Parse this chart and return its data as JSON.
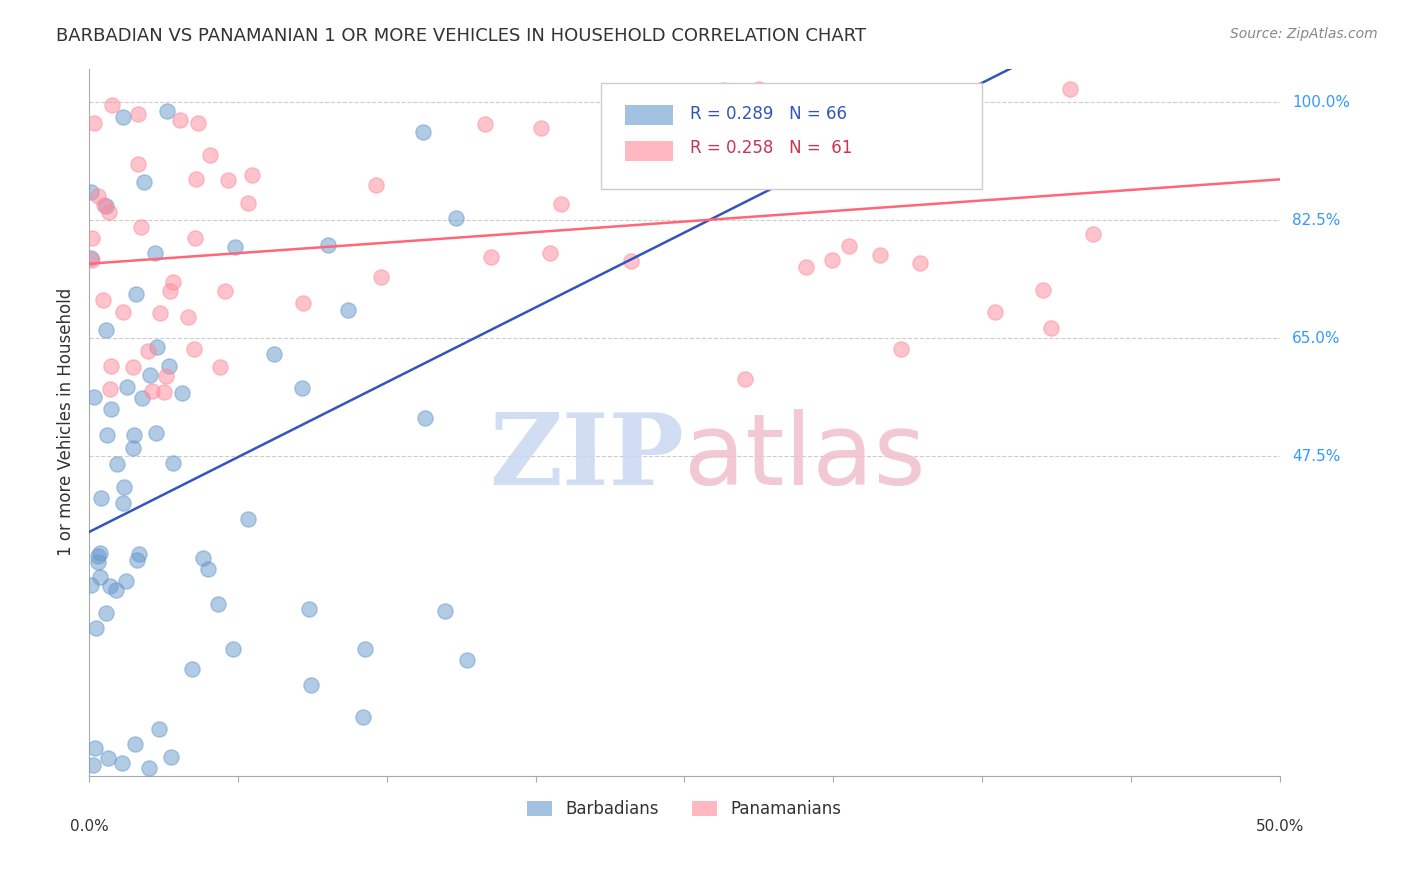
{
  "title": "BARBADIAN VS PANAMANIAN 1 OR MORE VEHICLES IN HOUSEHOLD CORRELATION CHART",
  "source": "Source: ZipAtlas.com",
  "ylabel": "1 or more Vehicles in Household",
  "ytick_labels": [
    "100.0%",
    "82.5%",
    "65.0%",
    "47.5%"
  ],
  "ytick_values": [
    1.0,
    0.825,
    0.65,
    0.475
  ],
  "xlim": [
    0.0,
    0.5
  ],
  "ylim": [
    0.0,
    1.05
  ],
  "barbadian_color": "#6699CC",
  "panamanian_color": "#FF8899",
  "barbadian_line_color": "#3355BB",
  "panamanian_line_color": "#FF6677",
  "legend_text_blue": "R = 0.289   N = 66",
  "legend_text_pink": "R = 0.258   N =  61",
  "legend_label_barbadians": "Barbadians",
  "legend_label_panamanians": "Panamanians",
  "watermark_zip_color": "#C8D8F0",
  "watermark_atlas_color": "#F0C0CC",
  "barbadian_R": 0.289,
  "barbadian_N": 66,
  "panamanian_R": 0.258,
  "panamanian_N": 61
}
